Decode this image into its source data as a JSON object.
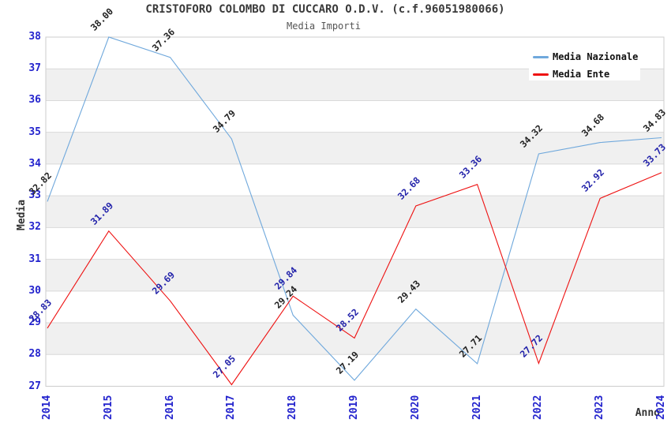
{
  "chart_data": {
    "type": "line",
    "title": "CRISTOFORO COLOMBO DI CUCCARO O.D.V. (c.f.96051980066)",
    "subtitle": "Media Importi",
    "xlabel": "Anno",
    "ylabel": "Media",
    "x": [
      "2014",
      "2015",
      "2016",
      "2017",
      "2018",
      "2019",
      "2020",
      "2021",
      "2022",
      "2023",
      "2024"
    ],
    "y_ticks": [
      27,
      28,
      29,
      30,
      31,
      32,
      33,
      34,
      35,
      36,
      37,
      38
    ],
    "ylim": [
      27,
      38
    ],
    "grid": true,
    "alternating_bands": true,
    "legend_position": "top-right",
    "series": [
      {
        "name": "Media Nazionale",
        "color": "#6fa8dc",
        "label_color": "#222222",
        "values": [
          32.82,
          38.0,
          37.36,
          34.79,
          29.24,
          27.19,
          29.43,
          27.71,
          34.32,
          34.68,
          34.83
        ]
      },
      {
        "name": "Media Ente",
        "color": "#ee1111",
        "label_color": "#2222aa",
        "values": [
          28.83,
          31.89,
          29.69,
          27.05,
          29.84,
          28.52,
          32.68,
          33.36,
          27.72,
          32.92,
          33.73
        ]
      }
    ],
    "colors": {
      "axis_tick_text": "#2323cd",
      "band_gray": "#f0f0f0",
      "gridline": "#d9d9d9",
      "plot_border": "#cccccc",
      "background": "#ffffff"
    }
  }
}
